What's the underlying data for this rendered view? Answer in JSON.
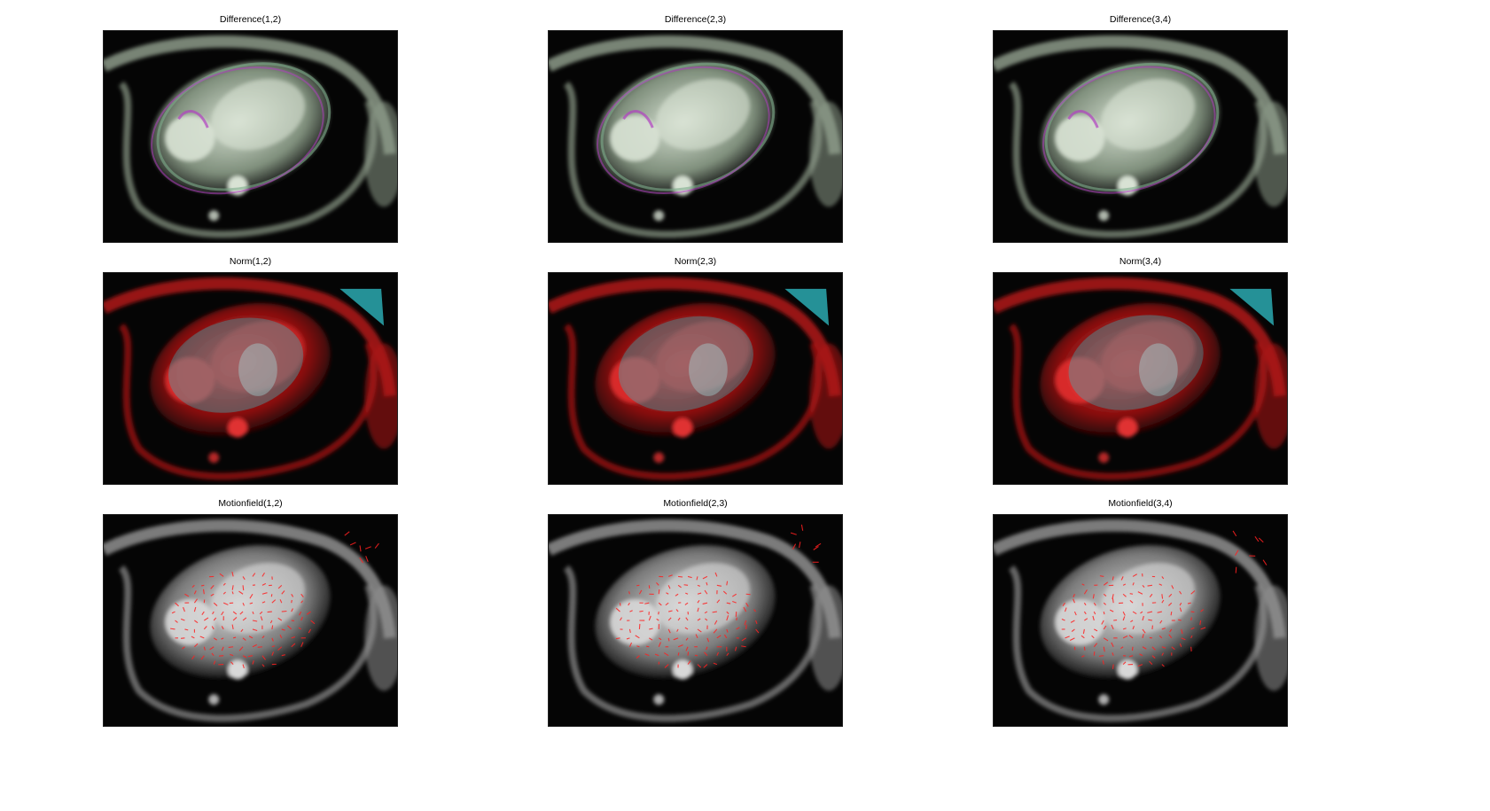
{
  "figure": {
    "rows": [
      {
        "kind": "difference",
        "panels": [
          {
            "title": "Difference(1,2)"
          },
          {
            "title": "Difference(2,3)"
          },
          {
            "title": "Difference(3,4)"
          }
        ]
      },
      {
        "kind": "norm",
        "panels": [
          {
            "title": "Norm(1,2)"
          },
          {
            "title": "Norm(2,3)"
          },
          {
            "title": "Norm(3,4)"
          }
        ]
      },
      {
        "kind": "motionfield",
        "panels": [
          {
            "title": "Motionfield(1,2)"
          },
          {
            "title": "Motionfield(2,3)"
          },
          {
            "title": "Motionfield(3,4)"
          }
        ]
      }
    ],
    "colors": {
      "difference_tint": "#7fae8c",
      "difference_edge": "#b040c0",
      "norm_base": "#c01010",
      "norm_overlay": "#30c0c8",
      "motion_vector": "#ff2020",
      "gray": "#9a9a9a"
    }
  }
}
